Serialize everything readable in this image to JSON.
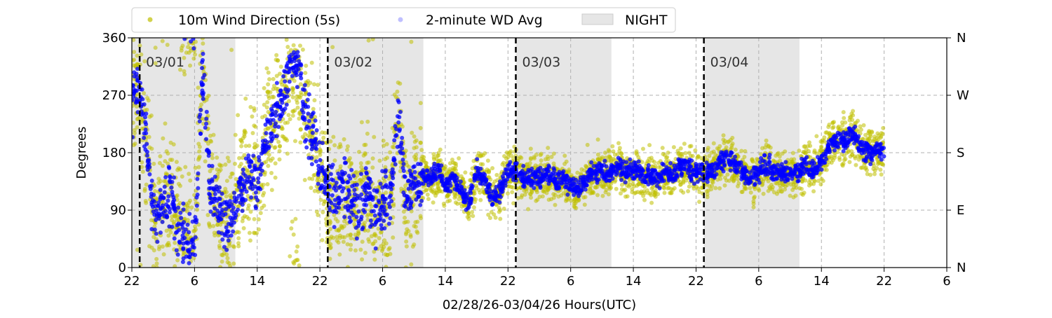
{
  "chart_data": {
    "type": "scatter",
    "xlabel": "02/28/26-03/04/26  Hours(UTC)",
    "ylabel": "Degrees",
    "xlim_hours": [
      0,
      104
    ],
    "ylim": [
      0,
      360
    ],
    "x_ticks": [
      {
        "hour": 0,
        "label": "22"
      },
      {
        "hour": 8,
        "label": "6"
      },
      {
        "hour": 16,
        "label": "14"
      },
      {
        "hour": 24,
        "label": "22"
      },
      {
        "hour": 32,
        "label": "6"
      },
      {
        "hour": 40,
        "label": "14"
      },
      {
        "hour": 48,
        "label": "22"
      },
      {
        "hour": 56,
        "label": "6"
      },
      {
        "hour": 64,
        "label": "14"
      },
      {
        "hour": 72,
        "label": "22"
      },
      {
        "hour": 80,
        "label": "6"
      },
      {
        "hour": 88,
        "label": "14"
      },
      {
        "hour": 96,
        "label": "22"
      },
      {
        "hour": 104,
        "label": "6"
      }
    ],
    "y_ticks": [
      {
        "value": 0,
        "label": "0",
        "right": "N"
      },
      {
        "value": 90,
        "label": "90",
        "right": "E"
      },
      {
        "value": 180,
        "label": "180",
        "right": "S"
      },
      {
        "value": 270,
        "label": "270",
        "right": "W"
      },
      {
        "value": 360,
        "label": "360",
        "right": "N"
      }
    ],
    "grid": true,
    "legend": {
      "placement": "top",
      "entries": [
        {
          "label": "10m Wind Direction (5s)",
          "color": "#bfbf00"
        },
        {
          "label": "2-minute WD Avg",
          "color": "#0000ff"
        },
        {
          "label": "NIGHT",
          "color": "#e6e6e6"
        }
      ]
    },
    "nights_hours": [
      [
        0,
        13.2
      ],
      [
        25,
        37.2
      ],
      [
        49,
        61.2
      ],
      [
        73,
        85.2
      ]
    ],
    "day_markers": [
      {
        "hour": 1,
        "label": "03/01"
      },
      {
        "hour": 25,
        "label": "03/02"
      },
      {
        "hour": 49,
        "label": "03/03"
      },
      {
        "hour": 73,
        "label": "03/04"
      }
    ],
    "series": [
      {
        "name": "2-minute WD Avg (approx hourly center, degrees)",
        "hourly": [
          250,
          290,
          180,
          60,
          110,
          120,
          60,
          40,
          30,
          300,
          120,
          100,
          60,
          90,
          130,
          150,
          130,
          200,
          230,
          250,
          300,
          330,
          250,
          200,
          160,
          120,
          110,
          130,
          100,
          90,
          120,
          80,
          100,
          110,
          240,
          100,
          130,
          140,
          140,
          150,
          130,
          140,
          120,
          100,
          150,
          140,
          110,
          120,
          150,
          150,
          140,
          140,
          140,
          145,
          135,
          140,
          130,
          120,
          140,
          150,
          150,
          150,
          160,
          150,
          150,
          150,
          145,
          140,
          150,
          140,
          160,
          150,
          150,
          150,
          150,
          160,
          175,
          160,
          150,
          140,
          150,
          160,
          150,
          150,
          145,
          150,
          160,
          155,
          165,
          190,
          200,
          200,
          210,
          190,
          180,
          185,
          180
        ],
        "spread_deg_first_37h": 70,
        "spread_deg_after": 25
      }
    ]
  }
}
